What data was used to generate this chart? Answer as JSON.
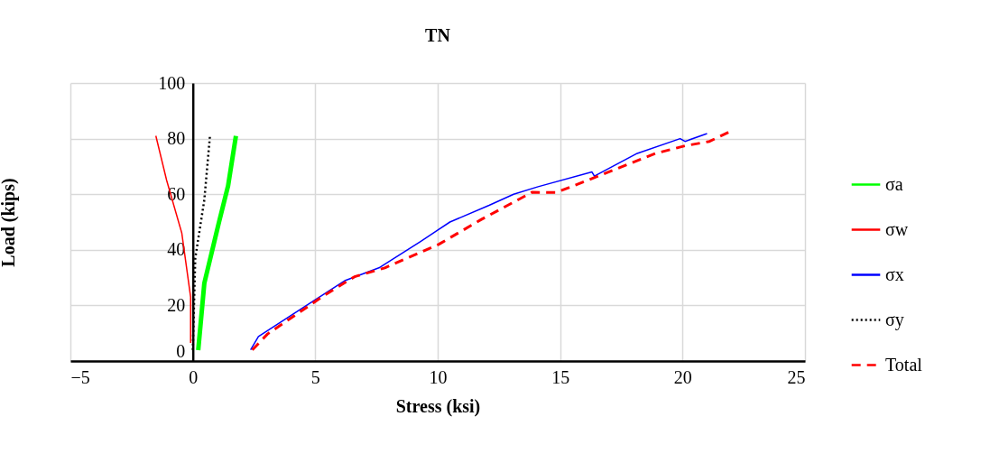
{
  "chart_data": {
    "type": "line",
    "title": "TN",
    "xlabel": "Stress (ksi)",
    "ylabel": "Load (kips)",
    "xlim": [
      -5,
      25
    ],
    "xticks": [
      -5,
      0,
      5,
      10,
      15,
      20,
      25
    ],
    "ylim": [
      0,
      100
    ],
    "yticks": [
      0,
      20,
      40,
      60,
      80,
      100
    ],
    "grid": true,
    "legend": "right",
    "series": [
      {
        "name": "σa",
        "color": "#00ff00",
        "line_style": "solid",
        "x": [
          0.22,
          0.47,
          1.07,
          1.44,
          1.76
        ],
        "values": [
          3.9,
          28,
          50,
          63,
          81
        ]
      },
      {
        "name": "σw",
        "color": "#ff0000",
        "line_style": "solid",
        "x": [
          -0.09,
          -0.09,
          -0.45,
          -1.07,
          -1.51
        ],
        "values": [
          6.5,
          23,
          46,
          65,
          81
        ]
      },
      {
        "name": "σx",
        "color": "#0000ff",
        "line_style": "solid",
        "x": [
          2.36,
          2.68,
          5.0,
          6.23,
          7.6,
          9.3,
          10.5,
          12.1,
          13.1,
          14.1,
          16.3,
          16.4,
          18.15,
          19.9,
          20.1,
          21.0
        ],
        "values": [
          4,
          8.8,
          22,
          29,
          33.5,
          43,
          50,
          56,
          60,
          62.7,
          68,
          66.5,
          74.7,
          80,
          79,
          81.8
        ]
      },
      {
        "name": "σy",
        "color": "#000000",
        "line_style": "dotted",
        "x": [
          0.0,
          0.1,
          0.47,
          0.7
        ],
        "values": [
          4,
          37,
          58,
          81
        ]
      },
      {
        "name": "Total",
        "color": "#ff0000",
        "line_style": "dashed",
        "x": [
          2.43,
          3.05,
          5.4,
          6.6,
          7.84,
          10.05,
          11.8,
          13.85,
          14.84,
          16.7,
          18.9,
          20.1,
          21.1,
          22.0
        ],
        "values": [
          4,
          9.7,
          23.8,
          30.3,
          33.5,
          42,
          51,
          60.7,
          60.6,
          67,
          74.7,
          77.4,
          79,
          82.8
        ]
      }
    ]
  }
}
